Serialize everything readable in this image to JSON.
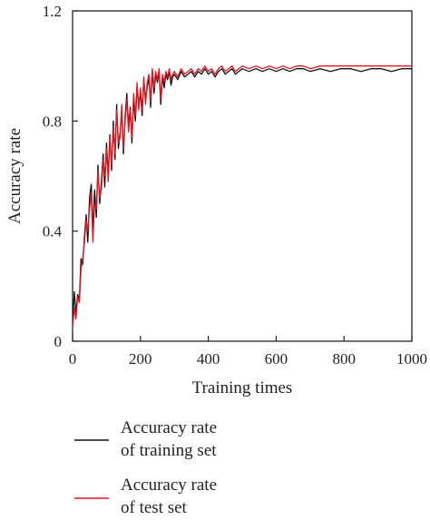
{
  "chart_data": {
    "type": "line",
    "xlabel": "Training times",
    "ylabel": "Accuracy rate",
    "xlim": [
      0,
      1000
    ],
    "ylim": [
      0,
      1.2
    ],
    "x_ticks": [
      "0",
      "200",
      "400",
      "600",
      "800",
      "1000"
    ],
    "y_ticks": [
      "0",
      "0.4",
      "0.8",
      "1.2"
    ],
    "grid": false,
    "legend_position": "bottom",
    "series": [
      {
        "name": "Accuracy rate of training set",
        "color": "#111111",
        "x": [
          0,
          5,
          10,
          15,
          20,
          25,
          30,
          35,
          40,
          45,
          50,
          55,
          60,
          65,
          70,
          75,
          80,
          85,
          90,
          95,
          100,
          105,
          110,
          115,
          120,
          125,
          130,
          135,
          140,
          145,
          150,
          155,
          160,
          165,
          170,
          175,
          180,
          185,
          190,
          195,
          200,
          205,
          210,
          215,
          220,
          225,
          230,
          235,
          240,
          245,
          250,
          255,
          260,
          265,
          270,
          275,
          280,
          285,
          290,
          295,
          300,
          310,
          320,
          330,
          340,
          350,
          360,
          370,
          380,
          390,
          400,
          410,
          420,
          430,
          440,
          450,
          460,
          470,
          480,
          490,
          500,
          520,
          540,
          560,
          580,
          600,
          620,
          640,
          660,
          680,
          700,
          730,
          760,
          790,
          820,
          850,
          880,
          910,
          940,
          970,
          1000
        ],
        "y": [
          0.06,
          0.18,
          0.1,
          0.17,
          0.15,
          0.3,
          0.28,
          0.38,
          0.46,
          0.36,
          0.52,
          0.57,
          0.4,
          0.55,
          0.45,
          0.64,
          0.5,
          0.58,
          0.68,
          0.56,
          0.72,
          0.6,
          0.75,
          0.62,
          0.8,
          0.66,
          0.86,
          0.7,
          0.76,
          0.84,
          0.68,
          0.82,
          0.9,
          0.78,
          0.85,
          0.72,
          0.88,
          0.8,
          0.92,
          0.86,
          0.9,
          0.82,
          0.95,
          0.88,
          0.92,
          0.96,
          0.85,
          0.98,
          0.9,
          0.97,
          0.94,
          0.98,
          0.86,
          0.96,
          0.92,
          0.97,
          0.95,
          0.98,
          0.93,
          0.96,
          0.97,
          0.95,
          0.98,
          0.96,
          0.97,
          0.98,
          0.96,
          0.98,
          0.97,
          0.99,
          0.97,
          0.98,
          0.96,
          0.98,
          0.99,
          0.97,
          0.98,
          0.99,
          0.97,
          0.98,
          0.99,
          0.98,
          0.99,
          0.98,
          0.99,
          0.98,
          0.99,
          0.98,
          0.99,
          0.99,
          0.98,
          0.99,
          0.98,
          0.99,
          0.99,
          0.98,
          0.99,
          0.99,
          0.98,
          0.99,
          0.99
        ]
      },
      {
        "name": "Accuracy rate of test set",
        "color": "#e8141e",
        "x": [
          0,
          5,
          10,
          15,
          20,
          25,
          30,
          35,
          40,
          45,
          50,
          55,
          60,
          65,
          70,
          75,
          80,
          85,
          90,
          95,
          100,
          105,
          110,
          115,
          120,
          125,
          130,
          135,
          140,
          145,
          150,
          155,
          160,
          165,
          170,
          175,
          180,
          185,
          190,
          195,
          200,
          205,
          210,
          215,
          220,
          225,
          230,
          235,
          240,
          245,
          250,
          255,
          260,
          265,
          270,
          275,
          280,
          285,
          290,
          295,
          300,
          310,
          320,
          330,
          340,
          350,
          360,
          370,
          380,
          390,
          400,
          410,
          420,
          430,
          440,
          450,
          460,
          470,
          480,
          490,
          500,
          520,
          540,
          560,
          580,
          600,
          620,
          640,
          660,
          680,
          700,
          730,
          760,
          790,
          820,
          850,
          880,
          910,
          940,
          970,
          1000
        ],
        "y": [
          0.05,
          0.12,
          0.08,
          0.16,
          0.14,
          0.26,
          0.3,
          0.36,
          0.44,
          0.4,
          0.48,
          0.54,
          0.36,
          0.5,
          0.48,
          0.62,
          0.52,
          0.55,
          0.66,
          0.6,
          0.7,
          0.58,
          0.74,
          0.64,
          0.78,
          0.68,
          0.84,
          0.72,
          0.74,
          0.86,
          0.7,
          0.8,
          0.88,
          0.76,
          0.84,
          0.74,
          0.9,
          0.82,
          0.94,
          0.84,
          0.92,
          0.84,
          0.96,
          0.86,
          0.94,
          0.97,
          0.87,
          0.99,
          0.92,
          0.98,
          0.95,
          0.99,
          0.88,
          0.97,
          0.94,
          0.98,
          0.96,
          0.99,
          0.95,
          0.97,
          0.98,
          0.96,
          0.99,
          0.97,
          0.98,
          0.99,
          0.97,
          0.99,
          0.98,
          1.0,
          0.98,
          0.99,
          0.97,
          0.99,
          1.0,
          0.98,
          0.99,
          1.0,
          0.98,
          0.99,
          1.0,
          0.99,
          1.0,
          0.99,
          1.0,
          0.99,
          1.0,
          0.99,
          1.0,
          1.0,
          0.99,
          1.0,
          1.0,
          1.0,
          1.0,
          1.0,
          1.0,
          1.0,
          1.0,
          1.0,
          1.0
        ]
      }
    ]
  },
  "legend": {
    "training_line1": "Accuracy rate",
    "training_line2": "of training set",
    "test_line1": "Accuracy rate",
    "test_line2": "of test set"
  }
}
